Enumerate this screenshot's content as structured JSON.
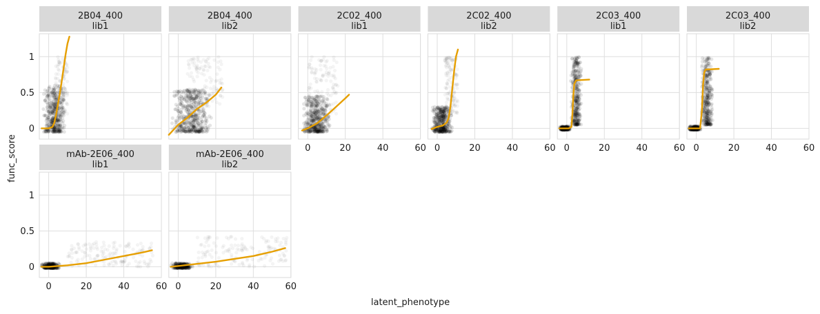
{
  "chart_data": {
    "type": "scatter",
    "xlabel": "latent_phenotype",
    "ylabel": "func_score",
    "xlim": [
      -5,
      60
    ],
    "ylim": [
      -0.15,
      1.32
    ],
    "x_ticks": [
      0,
      20,
      40,
      60
    ],
    "y_ticks": [
      0,
      0.5,
      1
    ],
    "grid": true,
    "point_color": "#000000",
    "fit_color": "#E69F00",
    "panels": [
      {
        "antibody": "2B04_400",
        "library": "lib1",
        "fit_curve": [
          [
            -3.8,
            0.0
          ],
          [
            0,
            0.0
          ],
          [
            2,
            0.02
          ],
          [
            3,
            0.08
          ],
          [
            4,
            0.2
          ],
          [
            5,
            0.35
          ],
          [
            6,
            0.5
          ],
          [
            7,
            0.67
          ],
          [
            8,
            0.85
          ],
          [
            9,
            1.03
          ],
          [
            10,
            1.18
          ],
          [
            11,
            1.28
          ]
        ],
        "clouds": [
          {
            "x": [
              -3,
              9
            ],
            "y": [
              -0.05,
              0.6
            ],
            "n": 420,
            "dense": true
          },
          {
            "x": [
              3,
              10
            ],
            "y": [
              0.2,
              1.0
            ],
            "n": 120,
            "dense": false
          }
        ]
      },
      {
        "antibody": "2B04_400",
        "library": "lib2",
        "fit_curve": [
          [
            -5,
            -0.09
          ],
          [
            0,
            0.05
          ],
          [
            5,
            0.15
          ],
          [
            10,
            0.27
          ],
          [
            15,
            0.36
          ],
          [
            20,
            0.47
          ],
          [
            23,
            0.57
          ]
        ],
        "clouds": [
          {
            "x": [
              -4,
              18
            ],
            "y": [
              -0.05,
              0.55
            ],
            "n": 480,
            "dense": true
          },
          {
            "x": [
              5,
              24
            ],
            "y": [
              0.3,
              1.0
            ],
            "n": 120,
            "dense": false
          }
        ]
      },
      {
        "antibody": "2C02_400",
        "library": "lib1",
        "fit_curve": [
          [
            -3,
            -0.03
          ],
          [
            0,
            0.0
          ],
          [
            5,
            0.07
          ],
          [
            10,
            0.18
          ],
          [
            15,
            0.3
          ],
          [
            20,
            0.42
          ],
          [
            22,
            0.47
          ]
        ],
        "clouds": [
          {
            "x": [
              -3,
              12
            ],
            "y": [
              -0.05,
              0.45
            ],
            "n": 450,
            "dense": true
          },
          {
            "x": [
              0,
              16
            ],
            "y": [
              0.2,
              1.0
            ],
            "n": 110,
            "dense": false
          }
        ]
      },
      {
        "antibody": "2C02_400",
        "library": "lib2",
        "fit_curve": [
          [
            -3,
            -0.01
          ],
          [
            0,
            0.02
          ],
          [
            3,
            0.04
          ],
          [
            5,
            0.08
          ],
          [
            6,
            0.14
          ],
          [
            7,
            0.3
          ],
          [
            8,
            0.55
          ],
          [
            9,
            0.8
          ],
          [
            10,
            1.0
          ],
          [
            11,
            1.1
          ]
        ],
        "clouds": [
          {
            "x": [
              -3,
              8
            ],
            "y": [
              -0.05,
              0.3
            ],
            "n": 420,
            "dense": true
          },
          {
            "x": [
              4,
              11
            ],
            "y": [
              0.2,
              1.0
            ],
            "n": 130,
            "dense": false
          }
        ]
      },
      {
        "antibody": "2C03_400",
        "library": "lib1",
        "fit_curve": [
          [
            -4,
            0.0
          ],
          [
            1,
            0.0
          ],
          [
            2.5,
            0.02
          ],
          [
            3,
            0.2
          ],
          [
            3.5,
            0.45
          ],
          [
            4,
            0.62
          ],
          [
            5,
            0.67
          ],
          [
            12,
            0.68
          ]
        ],
        "clouds": [
          {
            "x": [
              -4,
              2
            ],
            "y": [
              -0.02,
              0.03
            ],
            "n": 260,
            "dense": true
          },
          {
            "x": [
              2,
              8
            ],
            "y": [
              0.05,
              1.0
            ],
            "n": 360,
            "dense": true
          }
        ]
      },
      {
        "antibody": "2C03_400",
        "library": "lib2",
        "fit_curve": [
          [
            -4,
            0.0
          ],
          [
            2,
            0.0
          ],
          [
            3,
            0.25
          ],
          [
            3.6,
            0.6
          ],
          [
            4.2,
            0.78
          ],
          [
            5,
            0.82
          ],
          [
            12,
            0.83
          ]
        ],
        "clouds": [
          {
            "x": [
              -4,
              2.5
            ],
            "y": [
              -0.02,
              0.03
            ],
            "n": 260,
            "dense": true
          },
          {
            "x": [
              2.5,
              9
            ],
            "y": [
              0.05,
              1.0
            ],
            "n": 360,
            "dense": true
          }
        ]
      },
      {
        "antibody": "mAb-2E06_400",
        "library": "lib1",
        "fit_curve": [
          [
            -4,
            0.0
          ],
          [
            0,
            0.0
          ],
          [
            10,
            0.02
          ],
          [
            20,
            0.05
          ],
          [
            30,
            0.1
          ],
          [
            40,
            0.15
          ],
          [
            50,
            0.2
          ],
          [
            55,
            0.23
          ]
        ],
        "clouds": [
          {
            "x": [
              -4,
              6
            ],
            "y": [
              -0.02,
              0.05
            ],
            "n": 300,
            "dense": true
          },
          {
            "x": [
              10,
              56
            ],
            "y": [
              0.0,
              0.35
            ],
            "n": 150,
            "dense": false
          }
        ]
      },
      {
        "antibody": "mAb-2E06_400",
        "library": "lib2",
        "fit_curve": [
          [
            -4,
            0.0
          ],
          [
            0,
            0.01
          ],
          [
            10,
            0.04
          ],
          [
            20,
            0.07
          ],
          [
            30,
            0.11
          ],
          [
            40,
            0.15
          ],
          [
            50,
            0.21
          ],
          [
            57,
            0.26
          ]
        ],
        "clouds": [
          {
            "x": [
              -4,
              8
            ],
            "y": [
              -0.02,
              0.05
            ],
            "n": 300,
            "dense": true
          },
          {
            "x": [
              10,
              58
            ],
            "y": [
              0.0,
              0.42
            ],
            "n": 150,
            "dense": false
          }
        ]
      }
    ]
  }
}
